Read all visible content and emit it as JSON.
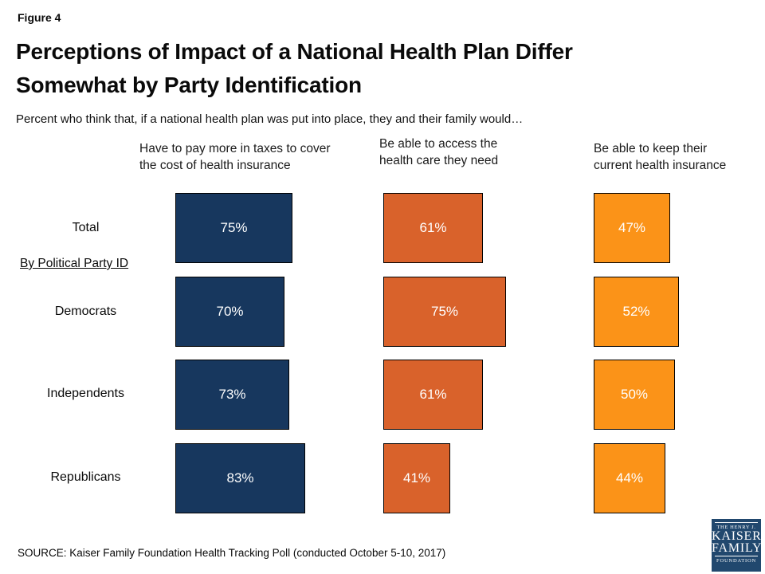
{
  "header": {
    "figure_label": "Figure 4",
    "title_lines": [
      "Perceptions of Impact of a National Health Plan Differ",
      "Somewhat by Party Identification"
    ],
    "subtitle": "Percent who think that, if a national health plan was put into place, they and their family would…"
  },
  "chart_data": {
    "type": "bar",
    "orientation": "horizontal",
    "title": "Perceptions of Impact of a National Health Plan Differ Somewhat by Party Identification",
    "subtitle": "Percent who think that, if a national health plan was put into place, they and their family would…",
    "xlim": [
      0,
      100
    ],
    "value_suffix": "%",
    "grid": false,
    "legend_position": "column-headers",
    "group_label": "By Political Party ID",
    "columns": [
      {
        "header": "Have to pay more in taxes to cover the cost of health insurance",
        "header_lines": [
          "Have to pay more in taxes to cover",
          "the cost of health insurance"
        ],
        "color": "#17375E"
      },
      {
        "header": "Be able to access the health care they need",
        "header_lines": [
          "Be able to access the",
          "health care they need"
        ],
        "color": "#D9622B"
      },
      {
        "header": "Be able to keep their current health insurance",
        "header_lines": [
          "Be able to keep their",
          "current health insurance"
        ],
        "color": "#FB9318"
      }
    ],
    "rows": [
      {
        "label": "Total",
        "values": [
          75,
          61,
          47
        ]
      },
      {
        "label": "Democrats",
        "values": [
          70,
          75,
          52
        ]
      },
      {
        "label": "Independents",
        "values": [
          73,
          61,
          50
        ]
      },
      {
        "label": "Republicans",
        "values": [
          83,
          41,
          44
        ]
      }
    ],
    "bar_label_color": "#FFFFFF",
    "bar_border_color": "#000000"
  },
  "footer": {
    "source": "SOURCE: Kaiser Family Foundation Health Tracking Poll (conducted October 5-10, 2017)",
    "logo": {
      "line1": "THE HENRY J.",
      "line2": "KAISER",
      "line3": "FAMILY",
      "line4": "FOUNDATION",
      "bg_color": "#21486E"
    }
  }
}
